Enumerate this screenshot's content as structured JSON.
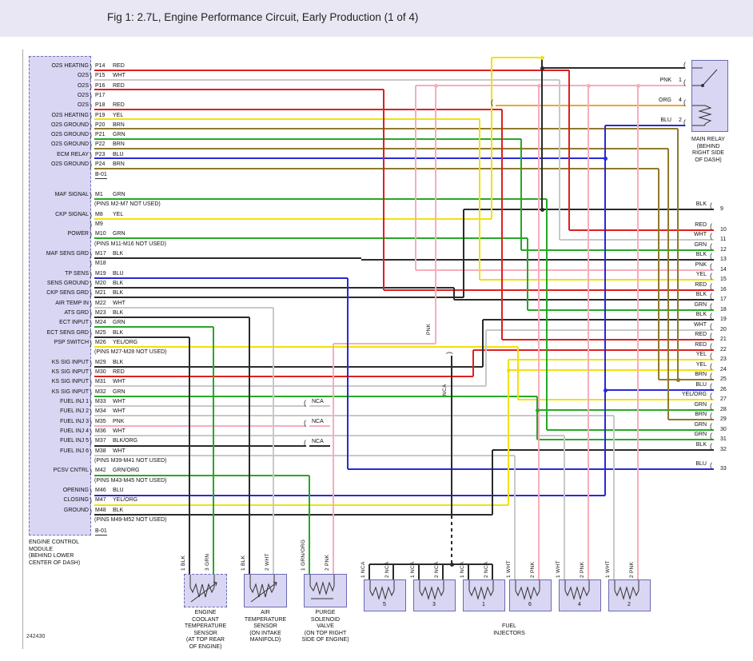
{
  "header": {
    "title": "Fig 1: 2.7L, Engine Performance Circuit, Early Production (1 of 4)"
  },
  "footer": {
    "ref": "242430"
  },
  "colors": {
    "RED": "#de1f1f",
    "WHT": "#c8c8c8",
    "YEL": "#f0e10a",
    "BRN": "#8f7a2e",
    "GRN": "#27a827",
    "BLU": "#2929d6",
    "BLK": "#2b2b2b",
    "PNK": "#f5aebc",
    "ORG": "#f0a339"
  },
  "ecm": {
    "caption": [
      "ENGINE CONTROL",
      "MODULE",
      "(BEHIND LOWER",
      "CENTER OF DASH)"
    ],
    "connector_top": "B-01",
    "connector_bottom": "B-01",
    "p_rows": [
      {
        "func": "O2S HEATING",
        "pin": "P14",
        "color": "RED"
      },
      {
        "func": "O2S",
        "pin": "P15",
        "color": "WHT"
      },
      {
        "func": "O2S",
        "pin": "P16",
        "color": "RED"
      },
      {
        "func": "O2S",
        "pin": "P17",
        "color": ""
      },
      {
        "func": "O2S",
        "pin": "P18",
        "color": "RED"
      },
      {
        "func": "O2S HEATING",
        "pin": "P19",
        "color": "YEL"
      },
      {
        "func": "O2S GROUND",
        "pin": "P20",
        "color": "BRN"
      },
      {
        "func": "O2S GROUND",
        "pin": "P21",
        "color": "GRN"
      },
      {
        "func": "O2S GROUND",
        "pin": "P22",
        "color": "BRN"
      },
      {
        "func": "ECM RELAY",
        "pin": "P23",
        "color": "BLU"
      },
      {
        "func": "O2S GROUND",
        "pin": "P24",
        "color": "BRN"
      }
    ],
    "m_rows": [
      {
        "func": "MAF SIGNAL",
        "pin": "M1",
        "color": "GRN"
      },
      {
        "note": "(PINS M2-M7 NOT USED)"
      },
      {
        "func": "CKP SIGNAL",
        "pin": "M8",
        "color": "YEL"
      },
      {
        "func": "",
        "pin": "M9",
        "color": ""
      },
      {
        "func": "POWER",
        "pin": "M10",
        "color": "GRN"
      },
      {
        "note": "(PINS M11-M16 NOT USED)"
      },
      {
        "func": "MAF SENS GRD",
        "pin": "M17",
        "color": "BLK"
      },
      {
        "func": "",
        "pin": "M18",
        "color": ""
      },
      {
        "func": "TP SENS",
        "pin": "M19",
        "color": "BLU"
      },
      {
        "func": "SENS GROUND",
        "pin": "M20",
        "color": "BLK"
      },
      {
        "func": "CKP SENS GRD",
        "pin": "M21",
        "color": "BLK"
      },
      {
        "func": "AIR TEMP IN",
        "pin": "M22",
        "color": "WHT"
      },
      {
        "func": "ATS GRD",
        "pin": "M23",
        "color": "BLK"
      },
      {
        "func": "ECT INPUT",
        "pin": "M24",
        "color": "GRN"
      },
      {
        "func": "ECT SENS GRD",
        "pin": "M25",
        "color": "BLK"
      },
      {
        "func": "PSP SWITCH",
        "pin": "M26",
        "color": "YEL/ORG"
      },
      {
        "note": "(PINS M27-M28 NOT USED)"
      },
      {
        "func": "KS SIG INPUT",
        "pin": "M29",
        "color": "BLK"
      },
      {
        "func": "KS SIG INPUT",
        "pin": "M30",
        "color": "RED"
      },
      {
        "func": "KS SIG INPUT",
        "pin": "M31",
        "color": "WHT"
      },
      {
        "func": "KS SIG INPUT",
        "pin": "M32",
        "color": "GRN"
      },
      {
        "func": "FUEL INJ 1",
        "pin": "M33",
        "color": "WHT"
      },
      {
        "func": "FUEL INJ 2",
        "pin": "M34",
        "color": "WHT"
      },
      {
        "func": "FUEL INJ 3",
        "pin": "M35",
        "color": "PNK"
      },
      {
        "func": "FUEL INJ 4",
        "pin": "M36",
        "color": "WHT"
      },
      {
        "func": "FUEL INJ 5",
        "pin": "M37",
        "color": "BLK/ORG"
      },
      {
        "func": "FUEL INJ 6",
        "pin": "M38",
        "color": "WHT"
      },
      {
        "note": "(PINS M39-M41 NOT USED)"
      },
      {
        "func": "PCSV CNTRL",
        "pin": "M42",
        "color": "GRN/ORG"
      },
      {
        "note": "(PINS M43-M45 NOT USED)"
      },
      {
        "func": "OPENING",
        "pin": "M46",
        "color": "BLU"
      },
      {
        "func": "CLOSING",
        "pin": "M47",
        "color": "YEL/ORG"
      },
      {
        "func": "GROUND",
        "pin": "M48",
        "color": "BLK"
      },
      {
        "note": "(PINS M49-M52 NOT USED)"
      }
    ]
  },
  "exits": [
    {
      "num": "9",
      "color": "BLK"
    },
    {
      "num": "10",
      "color": "RED"
    },
    {
      "num": "11",
      "color": "WHT"
    },
    {
      "num": "12",
      "color": "GRN"
    },
    {
      "num": "13",
      "color": "BLK"
    },
    {
      "num": "14",
      "color": "PNK"
    },
    {
      "num": "15",
      "color": "YEL"
    },
    {
      "num": "16",
      "color": "RED"
    },
    {
      "num": "17",
      "color": "BLK"
    },
    {
      "num": "18",
      "color": "GRN"
    },
    {
      "num": "19",
      "color": "BLK"
    },
    {
      "num": "20",
      "color": "WHT"
    },
    {
      "num": "21",
      "color": "RED"
    },
    {
      "num": "22",
      "color": "RED"
    },
    {
      "num": "23",
      "color": "YEL"
    },
    {
      "num": "24",
      "color": "YEL"
    },
    {
      "num": "25",
      "color": "BRN"
    },
    {
      "num": "26",
      "color": "BLU"
    },
    {
      "num": "27",
      "color": "YEL/ORG"
    },
    {
      "num": "28",
      "color": "GRN"
    },
    {
      "num": "29",
      "color": "BRN"
    },
    {
      "num": "30",
      "color": "GRN"
    },
    {
      "num": "31",
      "color": "GRN"
    },
    {
      "num": "32",
      "color": "BLK"
    },
    {
      "num": "33",
      "color": "BLU"
    }
  ],
  "relay": {
    "pins": [
      {
        "color": "PNK",
        "num": "1"
      },
      {
        "color": "ORG",
        "num": "4"
      },
      {
        "color": "BLU",
        "num": "2"
      }
    ],
    "caption": [
      "MAIN RELAY",
      "(BEHIND",
      "RIGHT SIDE",
      "OF DASH)"
    ]
  },
  "nca_label": "NCA",
  "pnk_label": "PNK",
  "components": [
    {
      "id": "ect",
      "pins": [
        "1 BLK",
        "3 GRN"
      ],
      "caption": [
        "ENGINE",
        "COOLANT",
        "TEMPERATURE",
        "SENSOR",
        "(AT TOP REAR",
        "OF ENGINE)"
      ]
    },
    {
      "id": "ats",
      "pins": [
        "1 BLK",
        "2 WHT"
      ],
      "caption": [
        "AIR",
        "TEMPERATURE",
        "SENSOR",
        "(ON INTAKE",
        "MANIFOLD)"
      ]
    },
    {
      "id": "pcsv",
      "pins": [
        "1 GRN/ORG",
        "2 PNK"
      ],
      "caption": [
        "PURGE",
        "SOLENOID",
        "VALVE",
        "(ON TOP RIGHT",
        "SIDE OF ENGINE)"
      ]
    }
  ],
  "injectors": {
    "caption": [
      "FUEL",
      "INJECTORS"
    ],
    "units": [
      {
        "num": "5",
        "pins": [
          "1 NCA",
          "2 NCA"
        ]
      },
      {
        "num": "3",
        "pins": [
          "1 NCA",
          "2 NCA"
        ]
      },
      {
        "num": "1",
        "pins": [
          "1 NCA",
          "2 NCA"
        ]
      },
      {
        "num": "6",
        "pins": [
          "1 WHT",
          "2 PNK"
        ]
      },
      {
        "num": "4",
        "pins": [
          "1 WHT",
          "2 PNK"
        ]
      },
      {
        "num": "2",
        "pins": [
          "1 WHT",
          "2 PNK"
        ]
      }
    ]
  }
}
